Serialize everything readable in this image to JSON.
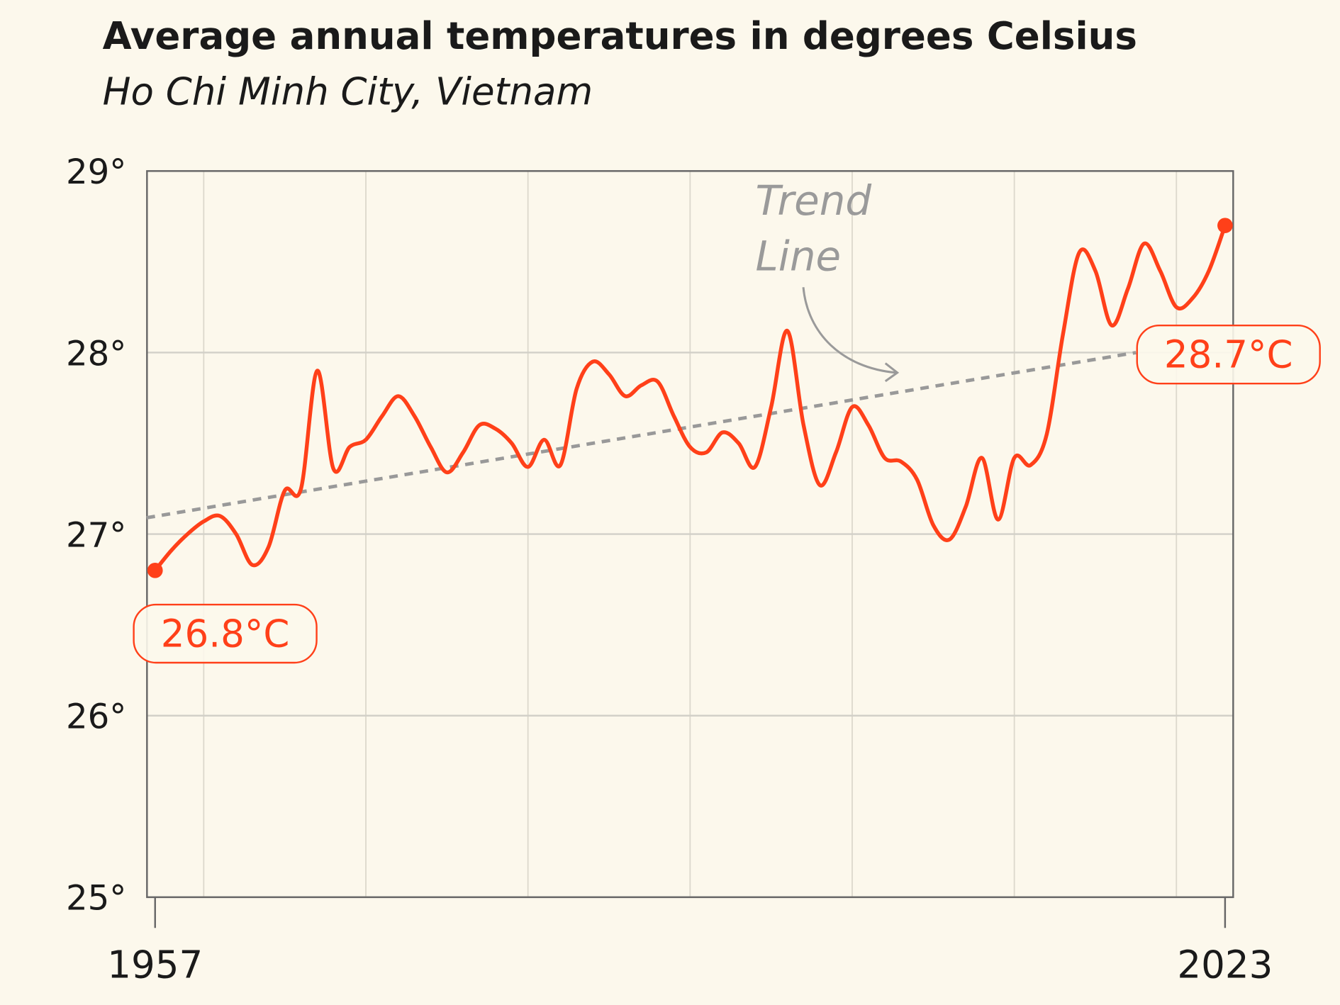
{
  "chart_data": {
    "type": "line",
    "title": "Average annual temperatures in degrees Celsius",
    "subtitle": "Ho Chi Minh City, Vietnam",
    "x": [
      1957,
      1958,
      1959,
      1960,
      1961,
      1962,
      1963,
      1964,
      1965,
      1966,
      1967,
      1968,
      1969,
      1970,
      1971,
      1972,
      1973,
      1974,
      1975,
      1976,
      1977,
      1978,
      1979,
      1980,
      1981,
      1982,
      1983,
      1984,
      1985,
      1986,
      1987,
      1988,
      1989,
      1990,
      1991,
      1992,
      1993,
      1994,
      1995,
      1996,
      1997,
      1998,
      1999,
      2000,
      2001,
      2002,
      2003,
      2004,
      2005,
      2006,
      2007,
      2008,
      2009,
      2010,
      2011,
      2012,
      2013,
      2014,
      2015,
      2016,
      2017,
      2018,
      2019,
      2020,
      2021,
      2022,
      2023
    ],
    "series": [
      {
        "color": "#ff4019",
        "values": [
          26.8,
          26.91,
          27.0,
          27.07,
          27.1,
          27.0,
          26.83,
          26.93,
          27.24,
          27.25,
          27.9,
          27.36,
          27.48,
          27.52,
          27.65,
          27.76,
          27.65,
          27.48,
          27.34,
          27.45,
          27.6,
          27.58,
          27.5,
          27.37,
          27.52,
          27.38,
          27.8,
          27.95,
          27.88,
          27.76,
          27.82,
          27.84,
          27.65,
          27.48,
          27.45,
          27.56,
          27.5,
          27.37,
          27.7,
          28.12,
          27.6,
          27.27,
          27.45,
          27.7,
          27.6,
          27.42,
          27.4,
          27.3,
          27.05,
          26.97,
          27.15,
          27.42,
          27.08,
          27.42,
          27.38,
          27.55,
          28.1,
          28.55,
          28.45,
          28.15,
          28.35,
          28.6,
          28.45,
          28.25,
          28.3,
          28.45,
          28.7
        ],
        "value_labels": [
          "26.8°C",
          null,
          null,
          null,
          null,
          null,
          null,
          null,
          null,
          null,
          null,
          null,
          null,
          null,
          null,
          null,
          null,
          null,
          null,
          null,
          null,
          null,
          null,
          null,
          null,
          null,
          null,
          null,
          null,
          null,
          null,
          null,
          null,
          null,
          null,
          null,
          null,
          null,
          null,
          null,
          null,
          null,
          null,
          null,
          null,
          null,
          null,
          null,
          null,
          null,
          null,
          null,
          null,
          null,
          null,
          null,
          null,
          null,
          null,
          null,
          null,
          null,
          null,
          null,
          null,
          null,
          "28.7°C"
        ]
      }
    ],
    "trend": {
      "x": [
        1957,
        2017.5
      ],
      "values": [
        27.09,
        28.0
      ],
      "color": "#999999"
    },
    "annotations": [
      "Trend",
      "Line"
    ],
    "xlim": [
      1956.5,
      2023.5
    ],
    "xticks": [
      1957,
      2023
    ],
    "xgrid": [
      1960,
      1970,
      1980,
      1990,
      2000,
      2010,
      2020
    ],
    "ylim": [
      25,
      29
    ],
    "yticks": [
      {
        "value": 25,
        "label": "25°"
      },
      {
        "value": 26,
        "label": "26°"
      },
      {
        "value": 27,
        "label": "27°"
      },
      {
        "value": 28,
        "label": "28°"
      },
      {
        "value": 29,
        "label": "29°"
      }
    ],
    "grid": true
  }
}
